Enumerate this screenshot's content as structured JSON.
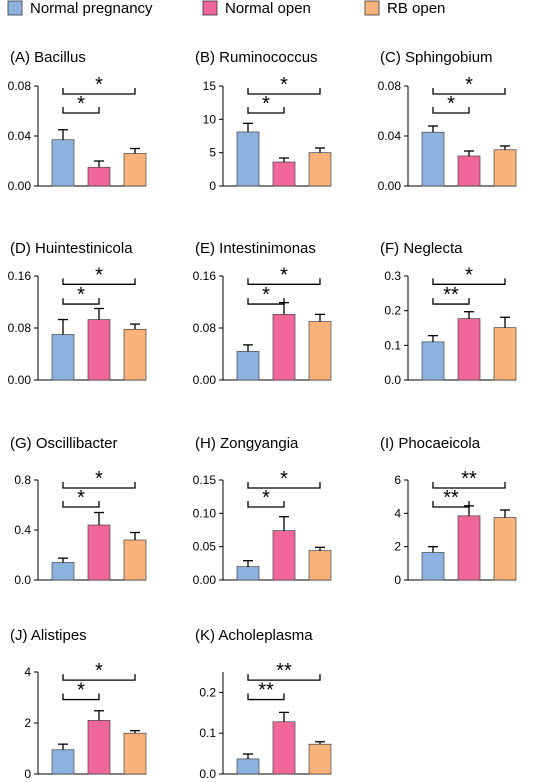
{
  "legend": [
    {
      "label": "Normal pregnancy",
      "color": "#8cb3e0"
    },
    {
      "label": "Normal open",
      "color": "#f2679a"
    },
    {
      "label": "RB open",
      "color": "#f8b27a"
    }
  ],
  "chart_data": [
    {
      "type": "bar",
      "title": "(A) Bacillus",
      "categories": [
        "Normal pregnancy",
        "Normal open",
        "RB open"
      ],
      "values": [
        0.037,
        0.015,
        0.026
      ],
      "errors": [
        0.008,
        0.005,
        0.004
      ],
      "ylim": [
        0,
        0.08
      ],
      "yticks": [
        "0.00",
        "0.04",
        "0.08"
      ],
      "significance": [
        {
          "from": 0,
          "to": 1,
          "label": "*"
        },
        {
          "from": 0,
          "to": 2,
          "label": "*"
        }
      ]
    },
    {
      "type": "bar",
      "title": "(B) Ruminococcus",
      "categories": [
        "Normal pregnancy",
        "Normal open",
        "RB open"
      ],
      "values": [
        8.1,
        3.6,
        5.0
      ],
      "errors": [
        1.3,
        0.6,
        0.7
      ],
      "ylim": [
        0,
        15
      ],
      "yticks": [
        "0",
        "5",
        "10",
        "15"
      ],
      "significance": [
        {
          "from": 0,
          "to": 1,
          "label": "*"
        },
        {
          "from": 0,
          "to": 2,
          "label": "*"
        }
      ]
    },
    {
      "type": "bar",
      "title": "(C) Sphingobium",
      "categories": [
        "Normal pregnancy",
        "Normal open",
        "RB open"
      ],
      "values": [
        0.043,
        0.024,
        0.029
      ],
      "errors": [
        0.005,
        0.004,
        0.003
      ],
      "ylim": [
        0,
        0.08
      ],
      "yticks": [
        "0.00",
        "0.04",
        "0.08"
      ],
      "significance": [
        {
          "from": 0,
          "to": 1,
          "label": "*"
        },
        {
          "from": 0,
          "to": 2,
          "label": "*"
        }
      ]
    },
    {
      "type": "bar",
      "title": "(D) Huintestinicola",
      "categories": [
        "Normal pregnancy",
        "Normal open",
        "RB open"
      ],
      "values": [
        0.07,
        0.093,
        0.078
      ],
      "errors": [
        0.023,
        0.017,
        0.008
      ],
      "ylim": [
        0,
        0.16
      ],
      "yticks": [
        "0.00",
        "0.08",
        "0.16"
      ],
      "significance": [
        {
          "from": 0,
          "to": 1,
          "label": "*"
        },
        {
          "from": 0,
          "to": 2,
          "label": "*"
        }
      ]
    },
    {
      "type": "bar",
      "title": "(E) Intestinimonas",
      "categories": [
        "Normal pregnancy",
        "Normal open",
        "RB open"
      ],
      "values": [
        0.044,
        0.101,
        0.09
      ],
      "errors": [
        0.01,
        0.018,
        0.011
      ],
      "ylim": [
        0,
        0.16
      ],
      "yticks": [
        "0.00",
        "0.08",
        "0.16"
      ],
      "significance": [
        {
          "from": 0,
          "to": 1,
          "label": "*"
        },
        {
          "from": 0,
          "to": 2,
          "label": "*"
        }
      ]
    },
    {
      "type": "bar",
      "title": "(F) Neglecta",
      "categories": [
        "Normal pregnancy",
        "Normal open",
        "RB open"
      ],
      "values": [
        0.11,
        0.177,
        0.151
      ],
      "errors": [
        0.018,
        0.02,
        0.03
      ],
      "ylim": [
        0,
        0.3
      ],
      "yticks": [
        "0.0",
        "0.1",
        "0.2",
        "0.3"
      ],
      "significance": [
        {
          "from": 0,
          "to": 1,
          "label": "**"
        },
        {
          "from": 0,
          "to": 2,
          "label": "*"
        }
      ]
    },
    {
      "type": "bar",
      "title": "(G) Oscillibacter",
      "categories": [
        "Normal pregnancy",
        "Normal open",
        "RB open"
      ],
      "values": [
        0.14,
        0.44,
        0.32
      ],
      "errors": [
        0.035,
        0.1,
        0.06
      ],
      "ylim": [
        0,
        0.8
      ],
      "yticks": [
        "0.0",
        "0.4",
        "0.8"
      ],
      "significance": [
        {
          "from": 0,
          "to": 1,
          "label": "*"
        },
        {
          "from": 0,
          "to": 2,
          "label": "*"
        }
      ]
    },
    {
      "type": "bar",
      "title": "(H) Zongyangia",
      "categories": [
        "Normal pregnancy",
        "Normal open",
        "RB open"
      ],
      "values": [
        0.02,
        0.074,
        0.044
      ],
      "errors": [
        0.009,
        0.021,
        0.005
      ],
      "ylim": [
        0,
        0.15
      ],
      "yticks": [
        "0.00",
        "0.05",
        "0.10",
        "0.15"
      ],
      "significance": [
        {
          "from": 0,
          "to": 1,
          "label": "*"
        },
        {
          "from": 0,
          "to": 2,
          "label": "*"
        }
      ]
    },
    {
      "type": "bar",
      "title": "(I) Phocaeicola",
      "categories": [
        "Normal pregnancy",
        "Normal open",
        "RB open"
      ],
      "values": [
        1.65,
        3.85,
        3.75
      ],
      "errors": [
        0.35,
        0.6,
        0.45
      ],
      "ylim": [
        0,
        6
      ],
      "yticks": [
        "0",
        "2",
        "4",
        "6"
      ],
      "significance": [
        {
          "from": 0,
          "to": 1,
          "label": "**"
        },
        {
          "from": 0,
          "to": 2,
          "label": "**"
        }
      ]
    },
    {
      "type": "bar",
      "title": "(J) Alistipes",
      "categories": [
        "Normal pregnancy",
        "Normal open",
        "RB open"
      ],
      "values": [
        0.95,
        2.1,
        1.6
      ],
      "errors": [
        0.22,
        0.38,
        0.1
      ],
      "ylim": [
        0,
        4
      ],
      "yticks": [
        "0",
        "2",
        "4"
      ],
      "significance": [
        {
          "from": 0,
          "to": 1,
          "label": "*"
        },
        {
          "from": 0,
          "to": 2,
          "label": "*"
        }
      ]
    },
    {
      "type": "bar",
      "title": "(K) Acholeplasma",
      "categories": [
        "Normal pregnancy",
        "Normal open",
        "RB open"
      ],
      "values": [
        0.037,
        0.128,
        0.073
      ],
      "errors": [
        0.012,
        0.023,
        0.006
      ],
      "ylim": [
        0,
        0.25
      ],
      "yticks": [
        "0.0",
        "0.1",
        "0.2"
      ],
      "significance": [
        {
          "from": 0,
          "to": 1,
          "label": "**"
        },
        {
          "from": 0,
          "to": 2,
          "label": "**"
        }
      ]
    }
  ]
}
